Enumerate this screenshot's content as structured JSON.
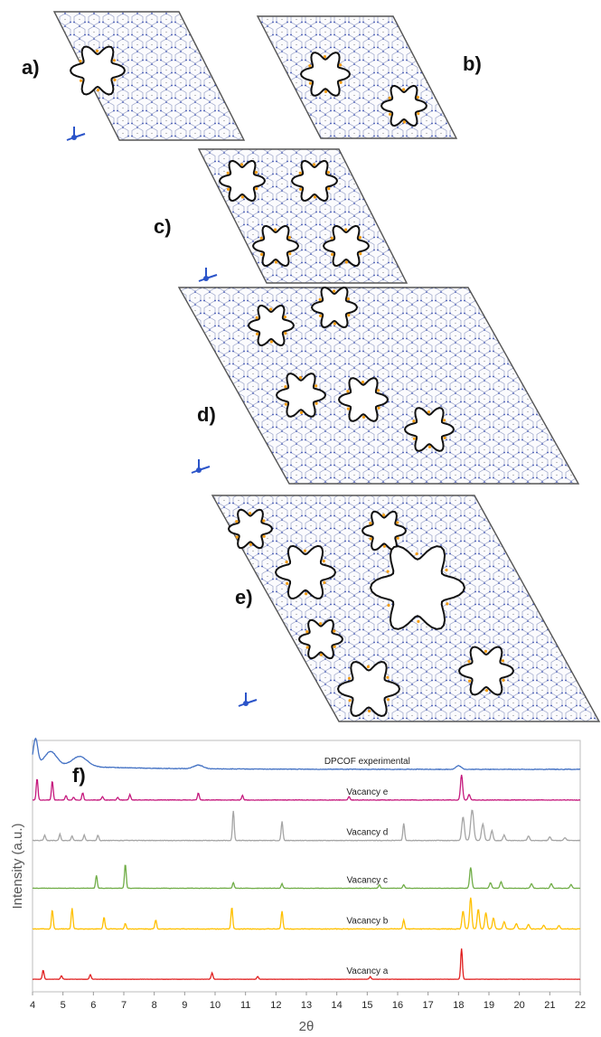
{
  "panels": [
    {
      "id": "a",
      "label": "a)",
      "cell": [
        [
          60,
          13
        ],
        [
          198,
          13
        ],
        [
          270,
          155
        ],
        [
          132,
          155
        ]
      ],
      "pores": [
        [
          108,
          78,
          30
        ]
      ],
      "axes": [
        82,
        152
      ],
      "labelPos": [
        24,
        82
      ]
    },
    {
      "id": "b",
      "label": "b)",
      "cell": [
        [
          285,
          18
        ],
        [
          435,
          18
        ],
        [
          505,
          153
        ],
        [
          355,
          153
        ]
      ],
      "pores": [
        [
          360,
          82,
          27
        ],
        [
          447,
          117,
          25
        ]
      ],
      "axes": null,
      "labelPos": [
        512,
        78
      ]
    },
    {
      "id": "c",
      "label": "c)",
      "cell": [
        [
          220,
          165
        ],
        [
          375,
          165
        ],
        [
          450,
          313
        ],
        [
          295,
          313
        ]
      ],
      "pores": [
        [
          268,
          200,
          25
        ],
        [
          348,
          200,
          25
        ],
        [
          305,
          272,
          25
        ],
        [
          383,
          272,
          25
        ]
      ],
      "axes": [
        228,
        308
      ],
      "labelPos": [
        170,
        258
      ]
    },
    {
      "id": "d",
      "label": "d)",
      "cell": [
        [
          198,
          318
        ],
        [
          518,
          318
        ],
        [
          640,
          535
        ],
        [
          320,
          535
        ]
      ],
      "pores": [
        [
          300,
          360,
          25
        ],
        [
          370,
          340,
          25
        ],
        [
          333,
          437,
          27
        ],
        [
          402,
          442,
          27
        ],
        [
          475,
          475,
          27
        ]
      ],
      "axes": [
        220,
        520
      ],
      "labelPos": [
        218,
        466
      ]
    },
    {
      "id": "e",
      "label": "e)",
      "cell": [
        [
          235,
          548
        ],
        [
          525,
          548
        ],
        [
          663,
          798
        ],
        [
          375,
          798
        ]
      ],
      "pores": [
        [
          277,
          585,
          24
        ],
        [
          425,
          587,
          24
        ],
        [
          338,
          633,
          33
        ],
        [
          462,
          650,
          52
        ],
        [
          355,
          707,
          24
        ],
        [
          408,
          762,
          34
        ],
        [
          538,
          742,
          30
        ]
      ],
      "axes": [
        272,
        778
      ],
      "labelPos": [
        260,
        668
      ]
    }
  ],
  "chart_data": {
    "type": "line",
    "panel_label": "f)",
    "xlabel": "2θ",
    "ylabel": "Intensity (a.u.)",
    "xlim": [
      4,
      22
    ],
    "xticks": [
      4,
      5,
      6,
      7,
      8,
      9,
      10,
      11,
      12,
      13,
      14,
      15,
      16,
      17,
      18,
      19,
      20,
      21,
      22
    ],
    "grid": false,
    "series": [
      {
        "name": "DPCOF experimental",
        "color": "#4472C4",
        "baseline_frac": 0.115,
        "label_x": 15.0,
        "peaks": [
          [
            4.1,
            28,
            0.1
          ],
          [
            4.6,
            15,
            0.28
          ],
          [
            5.55,
            11,
            0.35
          ],
          [
            9.45,
            4,
            0.22
          ],
          [
            18.0,
            4,
            0.12
          ]
        ],
        "noise": 0.3,
        "decay": [
          6,
          2.5
        ]
      },
      {
        "name": "Vacancy e",
        "color": "#C5197D",
        "baseline_frac": 0.237,
        "label_x": 15.0,
        "peaks": [
          [
            4.15,
            24,
            0.04
          ],
          [
            4.65,
            21,
            0.04
          ],
          [
            5.1,
            5,
            0.04
          ],
          [
            5.35,
            3,
            0.04
          ],
          [
            5.65,
            8,
            0.04
          ],
          [
            6.3,
            4,
            0.04
          ],
          [
            6.8,
            3,
            0.04
          ],
          [
            7.2,
            6,
            0.04
          ],
          [
            9.45,
            8,
            0.04
          ],
          [
            10.9,
            5,
            0.04
          ],
          [
            14.4,
            4,
            0.04
          ],
          [
            18.1,
            28,
            0.05
          ],
          [
            18.35,
            6,
            0.05
          ]
        ],
        "noise": 0.25,
        "decay": null
      },
      {
        "name": "Vacancy d",
        "color": "#A5A5A5",
        "baseline_frac": 0.398,
        "label_x": 15.0,
        "peaks": [
          [
            4.4,
            6,
            0.04
          ],
          [
            4.9,
            7,
            0.04
          ],
          [
            5.3,
            5,
            0.04
          ],
          [
            5.7,
            6,
            0.04
          ],
          [
            6.15,
            6,
            0.04
          ],
          [
            10.6,
            33,
            0.04
          ],
          [
            12.2,
            21,
            0.04
          ],
          [
            16.2,
            19,
            0.04
          ],
          [
            18.15,
            26,
            0.06
          ],
          [
            18.45,
            34,
            0.07
          ],
          [
            18.8,
            18,
            0.06
          ],
          [
            19.1,
            11,
            0.05
          ],
          [
            19.5,
            6,
            0.05
          ],
          [
            20.3,
            5,
            0.05
          ],
          [
            21.0,
            4,
            0.05
          ],
          [
            21.5,
            3,
            0.05
          ]
        ],
        "noise": 0.3,
        "decay": null
      },
      {
        "name": "Vacancy c",
        "color": "#70AD47",
        "baseline_frac": 0.588,
        "label_x": 15.0,
        "peaks": [
          [
            6.1,
            14,
            0.04
          ],
          [
            7.05,
            27,
            0.04
          ],
          [
            10.6,
            6,
            0.04
          ],
          [
            12.2,
            5,
            0.04
          ],
          [
            15.4,
            4,
            0.04
          ],
          [
            16.2,
            4,
            0.04
          ],
          [
            18.4,
            23,
            0.05
          ],
          [
            19.05,
            6,
            0.05
          ],
          [
            19.4,
            7,
            0.05
          ],
          [
            20.4,
            5,
            0.05
          ],
          [
            21.05,
            5,
            0.05
          ],
          [
            21.7,
            4,
            0.05
          ]
        ],
        "noise": 0.2,
        "decay": null
      },
      {
        "name": "Vacancy b",
        "color": "#FFC000",
        "baseline_frac": 0.75,
        "label_x": 15.0,
        "peaks": [
          [
            4.65,
            21,
            0.04
          ],
          [
            5.3,
            23,
            0.04
          ],
          [
            6.35,
            13,
            0.04
          ],
          [
            7.05,
            6,
            0.04
          ],
          [
            8.05,
            10,
            0.04
          ],
          [
            10.55,
            24,
            0.04
          ],
          [
            12.2,
            20,
            0.04
          ],
          [
            16.2,
            10,
            0.04
          ],
          [
            18.15,
            20,
            0.05
          ],
          [
            18.4,
            35,
            0.05
          ],
          [
            18.65,
            22,
            0.05
          ],
          [
            18.9,
            18,
            0.05
          ],
          [
            19.15,
            12,
            0.05
          ],
          [
            19.5,
            8,
            0.05
          ],
          [
            19.9,
            6,
            0.05
          ],
          [
            20.3,
            5,
            0.05
          ],
          [
            20.8,
            4,
            0.05
          ],
          [
            21.3,
            4,
            0.05
          ]
        ],
        "noise": 0.3,
        "decay": null
      },
      {
        "name": "Vacancy a",
        "color": "#E01E1E",
        "baseline_frac": 0.95,
        "label_x": 15.0,
        "peaks": [
          [
            4.35,
            10,
            0.04
          ],
          [
            4.95,
            4,
            0.04
          ],
          [
            5.9,
            5,
            0.04
          ],
          [
            9.9,
            7,
            0.04
          ],
          [
            11.4,
            3,
            0.04
          ],
          [
            15.1,
            3,
            0.04
          ],
          [
            18.1,
            34,
            0.04
          ]
        ],
        "noise": 0.15,
        "decay": null
      }
    ]
  }
}
